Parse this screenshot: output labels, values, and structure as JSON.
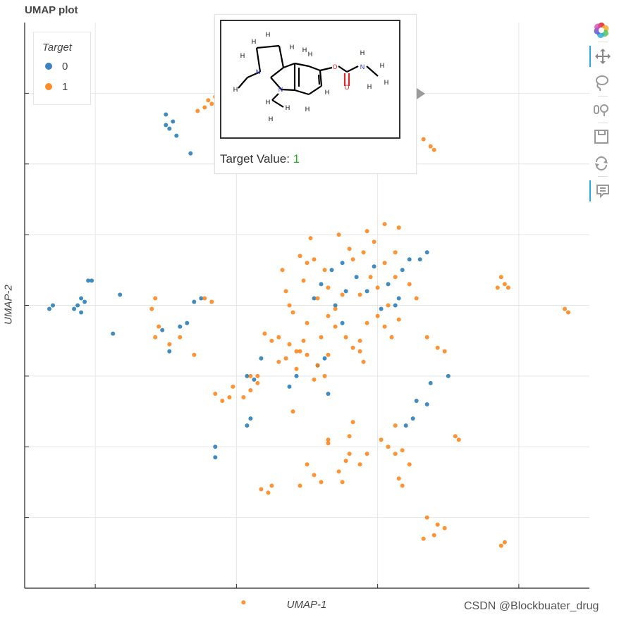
{
  "header": {
    "title": "UMAP plot"
  },
  "watermark": "CSDN @Blockbuater_drug",
  "legend": {
    "title": "Target",
    "items": [
      {
        "label": "0",
        "color": "#1f77b4"
      },
      {
        "label": "1",
        "color": "#ff7f0e"
      }
    ]
  },
  "tooltip": {
    "label": "Target Value:",
    "value": "1",
    "value_color": "#26aa26",
    "image": "2D structure drawing of the hovered molecule (carbamate-substituted indoline)"
  },
  "toolbar": [
    {
      "icon": "bokeh-logo-icon"
    },
    {
      "icon": "pan-tool-icon",
      "active": true
    },
    {
      "icon": "lasso-select-icon"
    },
    {
      "icon": "wheel-zoom-icon"
    },
    {
      "icon": "save-icon"
    },
    {
      "icon": "reset-icon"
    },
    {
      "icon": "hover-tool-icon",
      "active": true
    }
  ],
  "chart_data": {
    "type": "scatter",
    "title": "UMAP plot",
    "xlabel": "UMAP-1",
    "ylabel": "UMAP-2",
    "xlim": [
      -8,
      8
    ],
    "ylim": [
      -8,
      8
    ],
    "grid": true,
    "legend_position": "top-left",
    "point_color_by": "Target",
    "series": [
      {
        "name": "0",
        "color": "#1f77b4",
        "points": [
          [
            -7.2,
            0.0
          ],
          [
            -7.3,
            -0.1
          ],
          [
            -6.6,
            -0.1
          ],
          [
            -6.5,
            0.0
          ],
          [
            -6.4,
            -0.2
          ],
          [
            -6.4,
            0.2
          ],
          [
            -6.3,
            0.1
          ],
          [
            -6.2,
            0.7
          ],
          [
            -6.1,
            0.7
          ],
          [
            -5.5,
            -0.8
          ],
          [
            -4.1,
            -0.7
          ],
          [
            -3.9,
            -1.3
          ],
          [
            -3.6,
            -0.6
          ],
          [
            -3.4,
            -0.5
          ],
          [
            -3.0,
            0.2
          ],
          [
            -4.0,
            5.1
          ],
          [
            -4.0,
            5.4
          ],
          [
            -3.8,
            5.2
          ],
          [
            -3.7,
            4.8
          ],
          [
            -3.3,
            4.3
          ],
          [
            -2.6,
            -4.0
          ],
          [
            -2.6,
            -4.3
          ],
          [
            -1.7,
            -3.4
          ],
          [
            -1.6,
            -3.2
          ],
          [
            -1.7,
            -2.0
          ],
          [
            -1.5,
            -2.1
          ],
          [
            -1.3,
            -1.5
          ],
          [
            -0.5,
            -2.3
          ],
          [
            0.3,
            -1.7
          ],
          [
            0.5,
            -1.5
          ],
          [
            0.6,
            -2.5
          ],
          [
            0.2,
            0.2
          ],
          [
            0.4,
            0.6
          ],
          [
            0.8,
            0.0
          ],
          [
            1.0,
            -0.5
          ],
          [
            1.1,
            0.4
          ],
          [
            0.7,
            1.0
          ],
          [
            1.7,
            0.4
          ],
          [
            1.9,
            1.1
          ],
          [
            2.3,
            0.6
          ],
          [
            2.5,
            0.0
          ],
          [
            2.9,
            1.3
          ],
          [
            2.6,
            0.2
          ],
          [
            3.4,
            1.5
          ],
          [
            2.7,
            1.0
          ],
          [
            2.8,
            -3.4
          ],
          [
            3.1,
            -2.7
          ],
          [
            3.4,
            -2.8
          ],
          [
            3.0,
            -3.2
          ],
          [
            3.5,
            -2.2
          ],
          [
            4.0,
            -2.0
          ],
          [
            -3.9,
            5.0
          ],
          [
            -5.3,
            0.3
          ],
          [
            -3.2,
            0.1
          ],
          [
            1.4,
            0.8
          ],
          [
            1.0,
            1.2
          ],
          [
            2.1,
            -0.1
          ],
          [
            -0.3,
            -2.0
          ],
          [
            3.2,
            1.3
          ]
        ]
      },
      {
        "name": "1",
        "color": "#ff7f0e",
        "points": [
          [
            -2.8,
            5.8
          ],
          [
            -2.7,
            5.7
          ],
          [
            -2.9,
            5.6
          ],
          [
            -2.6,
            5.9
          ],
          [
            -3.1,
            5.5
          ],
          [
            -2.7,
            0.1
          ],
          [
            -2.9,
            0.2
          ],
          [
            -4.4,
            -0.1
          ],
          [
            -4.2,
            -0.6
          ],
          [
            -4.3,
            -0.9
          ],
          [
            -3.9,
            -1.1
          ],
          [
            -3.6,
            -0.9
          ],
          [
            -3.2,
            -1.4
          ],
          [
            -4.3,
            0.2
          ],
          [
            -0.8,
            -0.9
          ],
          [
            -1.0,
            -1.0
          ],
          [
            -1.2,
            -0.8
          ],
          [
            -0.5,
            -1.1
          ],
          [
            -0.2,
            -1.3
          ],
          [
            -0.6,
            -1.5
          ],
          [
            -0.3,
            -1.8
          ],
          [
            -2.6,
            -2.5
          ],
          [
            -2.4,
            -2.7
          ],
          [
            -2.2,
            -2.6
          ],
          [
            -2.1,
            -2.3
          ],
          [
            -1.8,
            -2.6
          ],
          [
            -1.6,
            -2.4
          ],
          [
            -1.4,
            -2.0
          ],
          [
            -0.8,
            -1.6
          ],
          [
            -0.1,
            -1.0
          ],
          [
            -0.4,
            -3.0
          ],
          [
            0.3,
            -1.7
          ],
          [
            0.5,
            -2.0
          ],
          [
            0.2,
            -2.1
          ],
          [
            -0.2,
            1.4
          ],
          [
            0.0,
            1.2
          ],
          [
            0.2,
            1.3
          ],
          [
            0.5,
            1.0
          ],
          [
            0.6,
            0.5
          ],
          [
            0.3,
            0.2
          ],
          [
            0.6,
            -0.3
          ],
          [
            0.8,
            -0.6
          ],
          [
            1.1,
            -0.9
          ],
          [
            1.3,
            -1.2
          ],
          [
            1.5,
            -1.0
          ],
          [
            0.8,
            -0.1
          ],
          [
            1.5,
            0.3
          ],
          [
            1.8,
            0.8
          ],
          [
            2.0,
            0.5
          ],
          [
            1.3,
            1.3
          ],
          [
            1.2,
            1.6
          ],
          [
            1.6,
            1.5
          ],
          [
            2.2,
            1.2
          ],
          [
            2.5,
            0.8
          ],
          [
            2.3,
            0.0
          ],
          [
            2.0,
            -0.3
          ],
          [
            1.7,
            -0.5
          ],
          [
            2.2,
            -0.6
          ],
          [
            2.4,
            -0.9
          ],
          [
            2.6,
            -0.4
          ],
          [
            1.9,
            1.8
          ],
          [
            1.7,
            2.1
          ],
          [
            2.2,
            2.3
          ],
          [
            2.6,
            2.2
          ],
          [
            2.5,
            1.5
          ],
          [
            -0.6,
            0.4
          ],
          [
            -0.4,
            -0.2
          ],
          [
            -0.5,
            0.0
          ],
          [
            0.0,
            -0.5
          ],
          [
            -0.1,
            0.7
          ],
          [
            1.0,
            0.3
          ],
          [
            0.4,
            -0.9
          ],
          [
            0.6,
            -1.4
          ],
          [
            2.9,
            0.6
          ],
          [
            3.1,
            0.2
          ],
          [
            3.4,
            -0.9
          ],
          [
            3.7,
            -1.2
          ],
          [
            3.9,
            -1.3
          ],
          [
            3.5,
            4.5
          ],
          [
            3.3,
            4.7
          ],
          [
            3.0,
            4.8
          ],
          [
            3.6,
            4.4
          ],
          [
            5.5,
            0.8
          ],
          [
            5.6,
            0.6
          ],
          [
            5.7,
            0.5
          ],
          [
            5.4,
            0.5
          ],
          [
            7.4,
            -0.2
          ],
          [
            7.3,
            -0.1
          ],
          [
            0.6,
            -3.8
          ],
          [
            0.6,
            -3.9
          ],
          [
            0.9,
            -4.7
          ],
          [
            1.0,
            -5.0
          ],
          [
            1.1,
            -4.4
          ],
          [
            1.2,
            -4.2
          ],
          [
            1.2,
            -3.7
          ],
          [
            1.3,
            -3.3
          ],
          [
            1.5,
            -4.5
          ],
          [
            1.7,
            -4.2
          ],
          [
            2.1,
            -3.8
          ],
          [
            2.3,
            -4.0
          ],
          [
            2.5,
            -4.2
          ],
          [
            2.7,
            -4.1
          ],
          [
            2.5,
            -3.4
          ],
          [
            2.9,
            -4.5
          ],
          [
            2.6,
            -4.9
          ],
          [
            2.7,
            -5.1
          ],
          [
            0.4,
            -5.0
          ],
          [
            0.2,
            -4.8
          ],
          [
            0.0,
            -4.5
          ],
          [
            -0.2,
            -5.1
          ],
          [
            -1.0,
            -5.1
          ],
          [
            -1.1,
            -5.3
          ],
          [
            -1.3,
            -5.2
          ],
          [
            -1.6,
            -2.0
          ],
          [
            -1.4,
            -2.2
          ],
          [
            4.2,
            -3.7
          ],
          [
            4.3,
            -3.8
          ],
          [
            3.7,
            -6.2
          ],
          [
            3.4,
            -6.0
          ],
          [
            3.6,
            -6.5
          ],
          [
            3.9,
            -6.3
          ],
          [
            3.3,
            -6.6
          ],
          [
            5.6,
            -6.7
          ],
          [
            5.5,
            -6.8
          ],
          [
            -1.8,
            -8.4
          ],
          [
            -0.3,
            -1.3
          ],
          [
            1.6,
            -1.6
          ],
          [
            0.9,
            2.0
          ],
          [
            0.1,
            1.9
          ],
          [
            -0.7,
            1.0
          ],
          [
            0.0,
            -1.4
          ],
          [
            1.5,
            -1.3
          ]
        ]
      }
    ]
  }
}
